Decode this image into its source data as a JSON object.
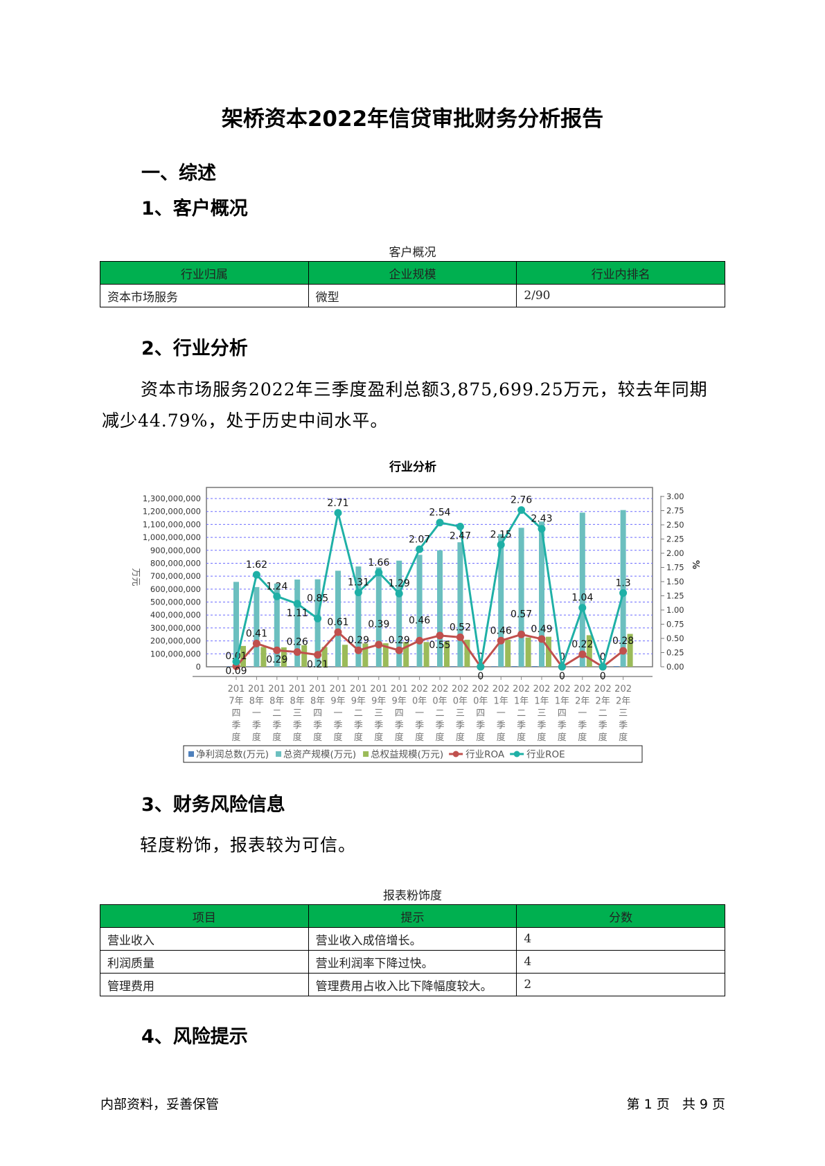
{
  "title": "架桥资本2022年信贷审批财务分析报告",
  "sections": {
    "s1": "一、综述",
    "s1_1": "1、客户概况",
    "s2": "2、行业分析",
    "s3": "3、财务风险信息",
    "s4": "4、风险提示"
  },
  "customer_table": {
    "caption": "客户概况",
    "headers": [
      "行业归属",
      "企业规模",
      "行业内排名"
    ],
    "row": [
      "资本市场服务",
      "微型",
      "2/90"
    ]
  },
  "industry_paragraph": "资本市场服务2022年三季度盈利总额3,875,699.25万元，较去年同期减少44.79%，处于历史中间水平。",
  "risk_text": "轻度粉饰，报表较为可信。",
  "risk_table": {
    "caption": "报表粉饰度",
    "headers": [
      "项目",
      "提示",
      "分数"
    ],
    "rows": [
      [
        "营业收入",
        "营业收入成倍增长。",
        "4"
      ],
      [
        "利润质量",
        "营业利润率下降过快。",
        "4"
      ],
      [
        "管理费用",
        "管理费用占收入比下降幅度较大。",
        "2"
      ]
    ]
  },
  "footer": {
    "left": "内部资料，妥善保管",
    "right": "第 1 页   共 9 页"
  },
  "chart_data": {
    "type": "bar",
    "title": "行业分析",
    "ylabel": "万元",
    "y2label": "%",
    "ylim": [
      0,
      1300000000
    ],
    "y2lim": [
      0,
      3
    ],
    "yticks": [
      "0",
      "100,000,000",
      "200,000,000",
      "300,000,000",
      "400,000,000",
      "500,000,000",
      "600,000,000",
      "700,000,000",
      "800,000,000",
      "900,000,000",
      "1,000,000,000",
      "1,100,000,000",
      "1,200,000,000",
      "1,300,000,000"
    ],
    "y2ticks": [
      "0.00",
      "0.25",
      "0.50",
      "0.75",
      "1.00",
      "1.25",
      "1.50",
      "1.75",
      "2.00",
      "2.25",
      "2.50",
      "2.75",
      "3.00"
    ],
    "grid": true,
    "legend_position": "bottom",
    "categories": [
      "2017年四季度",
      "2018年一季度",
      "2018年二季度",
      "2018年三季度",
      "2018年四季度",
      "2019年一季度",
      "2019年二季度",
      "2019年三季度",
      "2019年四季度",
      "2020年一季度",
      "2020年二季度",
      "2020年三季度",
      "2020年四季度",
      "2021年一季度",
      "2021年二季度",
      "2021年三季度",
      "2021年四季度",
      "2022年一季度",
      "2022年二季度",
      "2022年三季度"
    ],
    "series": [
      {
        "name": "净利润总数(万元)",
        "kind": "bar",
        "axis": "left",
        "color": "#4f81bd",
        "values": [
          3000000,
          3000000,
          3000000,
          3000000,
          3000000,
          3000000,
          3000000,
          3000000,
          3000000,
          4000000,
          4000000,
          4000000,
          0,
          4000000,
          5000000,
          5000000,
          0,
          4000000,
          0,
          5000000
        ]
      },
      {
        "name": "总资产规模(万元)",
        "kind": "bar",
        "axis": "left",
        "color": "#6bbfbf",
        "values": [
          656000000,
          616000000,
          643000000,
          674000000,
          676000000,
          742000000,
          775000000,
          768000000,
          820000000,
          865000000,
          900000000,
          962000000,
          0,
          1025000000,
          1074000000,
          1122000000,
          0,
          1191000000,
          0,
          1211000000
        ]
      },
      {
        "name": "总权益规模(万元)",
        "kind": "bar",
        "axis": "left",
        "color": "#9bbb59",
        "values": [
          161000000,
          153000000,
          150000000,
          167000000,
          153000000,
          170000000,
          180000000,
          182000000,
          191000000,
          191000000,
          195000000,
          209000000,
          0,
          209000000,
          226000000,
          232000000,
          0,
          244000000,
          0,
          254000000
        ]
      },
      {
        "name": "行业ROA",
        "kind": "line",
        "axis": "right",
        "color": "#c0504d",
        "values": [
          0.01,
          0.41,
          0.29,
          0.26,
          0.21,
          0.61,
          0.29,
          0.39,
          0.29,
          0.46,
          0.55,
          0.52,
          0,
          0.46,
          0.57,
          0.49,
          0,
          0.22,
          0,
          0.28
        ]
      },
      {
        "name": "行业ROE",
        "kind": "line",
        "axis": "right",
        "color": "#1fb0a6",
        "values": [
          0.09,
          1.62,
          1.24,
          1.11,
          0.85,
          2.71,
          1.31,
          1.66,
          1.29,
          2.07,
          2.54,
          2.47,
          0,
          2.15,
          2.76,
          2.43,
          0,
          1.04,
          0,
          1.3
        ]
      }
    ]
  }
}
